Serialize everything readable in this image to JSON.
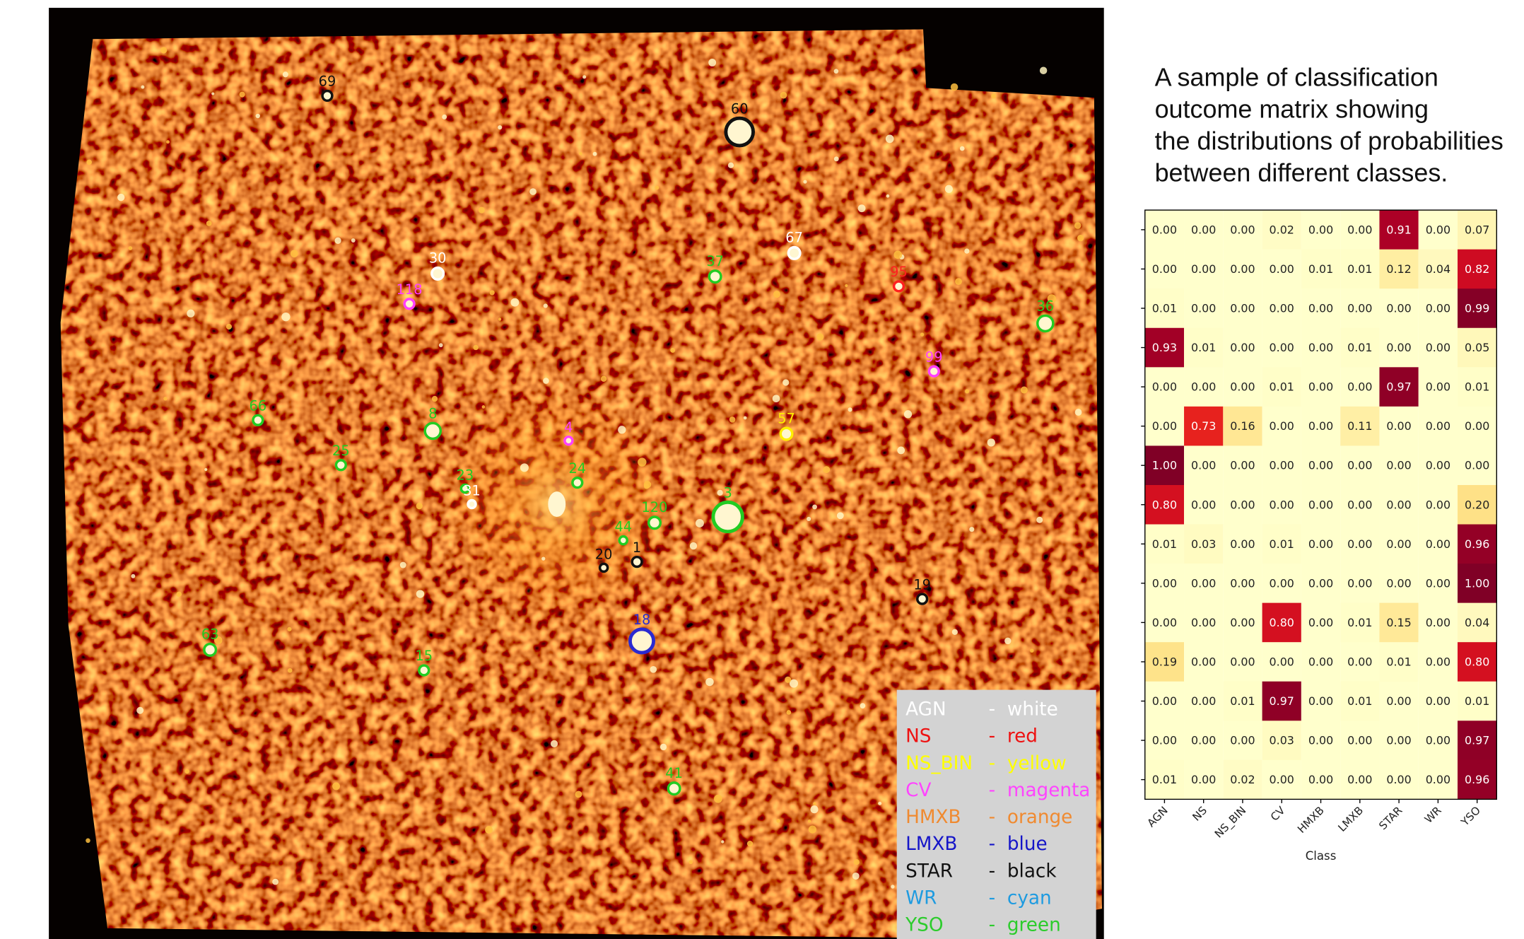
{
  "caption": [
    "A sample of classification",
    "outcome matrix showing",
    "the distributions of probabilities",
    "between different classes."
  ],
  "sources": [
    {
      "label": "69",
      "color": "#111111"
    },
    {
      "label": "60",
      "color": "#111111"
    },
    {
      "label": "30",
      "color": "#ffffff"
    },
    {
      "label": "67",
      "color": "#ffffff"
    },
    {
      "label": "37",
      "color": "#22cc22"
    },
    {
      "label": "118",
      "color": "#ff40ff"
    },
    {
      "label": "95",
      "color": "#ff2020"
    },
    {
      "label": "36",
      "color": "#22cc22"
    },
    {
      "label": "99",
      "color": "#ff40ff"
    },
    {
      "label": "66",
      "color": "#22cc22"
    },
    {
      "label": "8",
      "color": "#22cc22"
    },
    {
      "label": "4",
      "color": "#ff40ff"
    },
    {
      "label": "57",
      "color": "#ffee00"
    },
    {
      "label": "25",
      "color": "#22cc22"
    },
    {
      "label": "23",
      "color": "#22cc22"
    },
    {
      "label": "31",
      "color": "#ffffff"
    },
    {
      "label": "24",
      "color": "#22cc22"
    },
    {
      "label": "3",
      "color": "#22cc22"
    },
    {
      "label": "120",
      "color": "#22cc22"
    },
    {
      "label": "44",
      "color": "#22cc22"
    },
    {
      "label": "1",
      "color": "#111111"
    },
    {
      "label": "20",
      "color": "#111111"
    },
    {
      "label": "19",
      "color": "#111111"
    },
    {
      "label": "18",
      "color": "#2a2ad0"
    },
    {
      "label": "63",
      "color": "#22cc22"
    },
    {
      "label": "15",
      "color": "#22cc22"
    },
    {
      "label": "41",
      "color": "#22cc22"
    }
  ],
  "legend": {
    "separator": "-",
    "entries": [
      {
        "class": "AGN",
        "color_name": "white",
        "color": "#ffffff"
      },
      {
        "class": "NS",
        "color_name": "red",
        "color": "#ee1111"
      },
      {
        "class": "NS_BIN",
        "color_name": "yellow",
        "color": "#ffff00"
      },
      {
        "class": "CV",
        "color_name": "magenta",
        "color": "#ff44ff"
      },
      {
        "class": "HMXB",
        "color_name": "orange",
        "color": "#f08a30"
      },
      {
        "class": "LMXB",
        "color_name": "blue",
        "color": "#1515c8"
      },
      {
        "class": "STAR",
        "color_name": "black",
        "color": "#111111"
      },
      {
        "class": "WR",
        "color_name": "cyan",
        "color": "#1e9be0"
      },
      {
        "class": "YSO",
        "color_name": "green",
        "color": "#2ccc2c"
      }
    ]
  },
  "matrix": {
    "xlabel": "Class",
    "columns": [
      "AGN",
      "NS",
      "NS_BIN",
      "CV",
      "HMXB",
      "LMXB",
      "STAR",
      "WR",
      "YSO"
    ],
    "rows": [
      [
        "0.00",
        "0.00",
        "0.00",
        "0.02",
        "0.00",
        "0.00",
        "0.91",
        "0.00",
        "0.07"
      ],
      [
        "0.00",
        "0.00",
        "0.00",
        "0.00",
        "0.01",
        "0.01",
        "0.12",
        "0.04",
        "0.82"
      ],
      [
        "0.01",
        "0.00",
        "0.00",
        "0.00",
        "0.00",
        "0.00",
        "0.00",
        "0.00",
        "0.99"
      ],
      [
        "0.93",
        "0.01",
        "0.00",
        "0.00",
        "0.00",
        "0.01",
        "0.00",
        "0.00",
        "0.05"
      ],
      [
        "0.00",
        "0.00",
        "0.00",
        "0.01",
        "0.00",
        "0.00",
        "0.97",
        "0.00",
        "0.01"
      ],
      [
        "0.00",
        "0.73",
        "0.16",
        "0.00",
        "0.00",
        "0.11",
        "0.00",
        "0.00",
        "0.00"
      ],
      [
        "1.00",
        "0.00",
        "0.00",
        "0.00",
        "0.00",
        "0.00",
        "0.00",
        "0.00",
        "0.00"
      ],
      [
        "0.80",
        "0.00",
        "0.00",
        "0.00",
        "0.00",
        "0.00",
        "0.00",
        "0.00",
        "0.20"
      ],
      [
        "0.01",
        "0.03",
        "0.00",
        "0.01",
        "0.00",
        "0.00",
        "0.00",
        "0.00",
        "0.96"
      ],
      [
        "0.00",
        "0.00",
        "0.00",
        "0.00",
        "0.00",
        "0.00",
        "0.00",
        "0.00",
        "1.00"
      ],
      [
        "0.00",
        "0.00",
        "0.00",
        "0.80",
        "0.00",
        "0.01",
        "0.15",
        "0.00",
        "0.04"
      ],
      [
        "0.19",
        "0.00",
        "0.00",
        "0.00",
        "0.00",
        "0.00",
        "0.01",
        "0.00",
        "0.80"
      ],
      [
        "0.00",
        "0.00",
        "0.01",
        "0.97",
        "0.00",
        "0.01",
        "0.00",
        "0.00",
        "0.01"
      ],
      [
        "0.00",
        "0.00",
        "0.00",
        "0.03",
        "0.00",
        "0.00",
        "0.00",
        "0.00",
        "0.97"
      ],
      [
        "0.01",
        "0.00",
        "0.02",
        "0.00",
        "0.00",
        "0.00",
        "0.00",
        "0.00",
        "0.96"
      ]
    ]
  }
}
